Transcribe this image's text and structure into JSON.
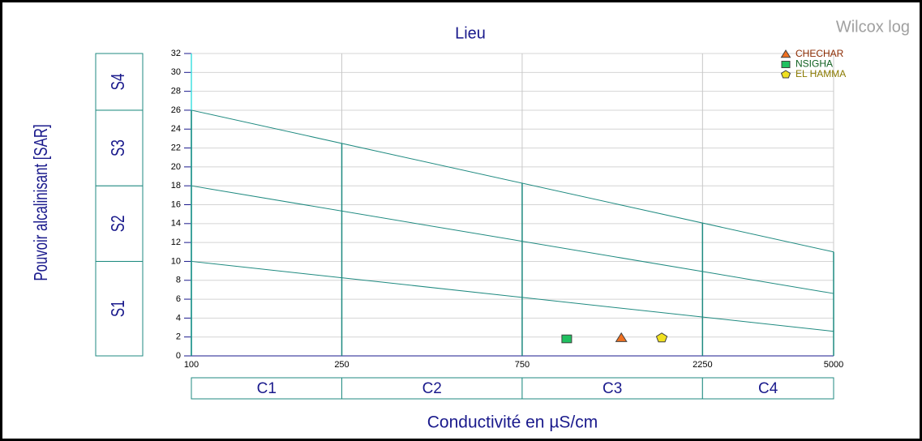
{
  "chart_data": {
    "type": "scatter",
    "title": "Lieu",
    "corner_label": "Wilcox log",
    "x_label": "Conductivité en µS/cm",
    "y_label": "Pouvoir alcalinisant [SAR]",
    "x_log": true,
    "xlim": [
      100,
      5000
    ],
    "xticks": [
      100,
      250,
      750,
      2250,
      5000
    ],
    "ylim": [
      0,
      32
    ],
    "yticks": [
      0,
      2,
      4,
      6,
      8,
      10,
      12,
      14,
      16,
      18,
      20,
      22,
      24,
      26,
      28,
      30,
      32
    ],
    "grid": true,
    "legend": "top-right",
    "c_classes": [
      "C1",
      "C2",
      "C3",
      "C4"
    ],
    "s_classes": {
      "labels": [
        "S1",
        "S2",
        "S3",
        "S4"
      ],
      "bounds": [
        0,
        10,
        18,
        26,
        32
      ]
    },
    "boundary_lines": [
      {
        "x": [
          100,
          5000
        ],
        "values": [
          10,
          2.6
        ]
      },
      {
        "x": [
          100,
          5000
        ],
        "values": [
          18,
          6.6
        ]
      },
      {
        "x": [
          100,
          5000
        ],
        "values": [
          26,
          11
        ]
      }
    ],
    "series": [
      {
        "name": "CHECHAR",
        "color": "#f07020",
        "text_color": "#8b2a00",
        "marker": "triangle",
        "x": [
          1372
        ],
        "values": [
          1.9
        ]
      },
      {
        "name": "NSIGHA",
        "color": "#20c060",
        "text_color": "#106020",
        "marker": "square",
        "x": [
          984
        ],
        "values": [
          1.8
        ]
      },
      {
        "name": "EL HAMMA",
        "color": "#f0e020",
        "text_color": "#8a7a00",
        "marker": "pentagon",
        "x": [
          1755
        ],
        "values": [
          1.9
        ]
      }
    ]
  }
}
